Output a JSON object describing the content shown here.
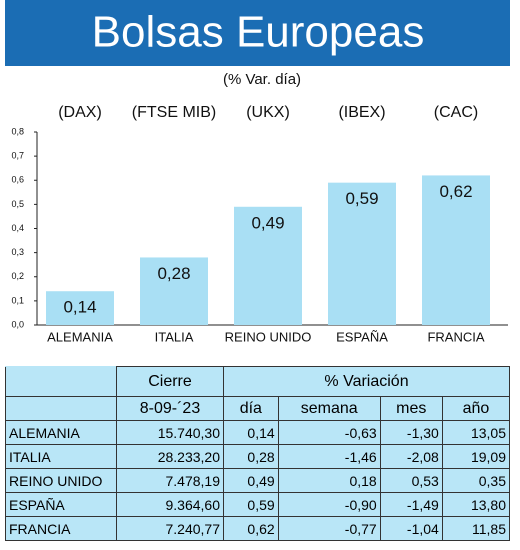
{
  "chart_data": {
    "type": "bar",
    "title": "Bolsas Europeas",
    "subtitle": "(% Var. día)",
    "indices": [
      "(DAX)",
      "(FTSE MIB)",
      "(UKX)",
      "(IBEX)",
      "(CAC)"
    ],
    "categories": [
      "ALEMANIA",
      "ITALIA",
      "REINO UNIDO",
      "ESPAÑA",
      "FRANCIA"
    ],
    "values": [
      0.14,
      0.28,
      0.49,
      0.59,
      0.62
    ],
    "value_labels": [
      "0,14",
      "0,28",
      "0,49",
      "0,59",
      "0,62"
    ],
    "color": "#a9dff4",
    "ylim": [
      0,
      0.8
    ],
    "yticks": [
      {
        "value": 0,
        "label": "0,0"
      },
      {
        "value": 0.1,
        "label": "0,1"
      },
      {
        "value": 0.2,
        "label": "0,2"
      },
      {
        "value": 0.3,
        "label": "0,3"
      },
      {
        "value": 0.4,
        "label": "0,4"
      },
      {
        "value": 0.5,
        "label": "0,5"
      },
      {
        "value": 0.6,
        "label": "0,6"
      },
      {
        "value": 0.7,
        "label": "0,7"
      },
      {
        "value": 0.8,
        "label": "0,8"
      }
    ],
    "grid": false
  },
  "table": {
    "header": [
      "Cierre",
      "% Variación"
    ],
    "subheader": [
      "8-09-´23",
      "día",
      "semana",
      "mes",
      "año"
    ],
    "rows": [
      [
        "ALEMANIA",
        "15.740,30",
        "0,14",
        "-0,63",
        "-1,30",
        "13,05"
      ],
      [
        "ITALIA",
        "28.233,20",
        "0,28",
        "-1,46",
        "-2,08",
        "19,09"
      ],
      [
        "REINO UNIDO",
        "7.478,19",
        "0,49",
        "0,18",
        "0,53",
        "0,35"
      ],
      [
        "ESPAÑA",
        "9.364,60",
        "0,59",
        "-0,90",
        "-1,49",
        "13,80"
      ],
      [
        "FRANCIA",
        "7.240,77",
        "0,62",
        "-0,77",
        "-1,04",
        "11,85"
      ]
    ]
  }
}
